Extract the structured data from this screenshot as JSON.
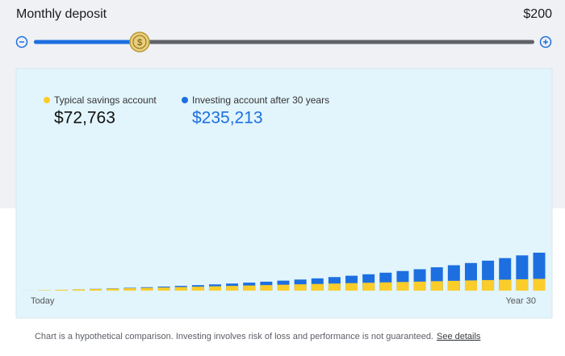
{
  "header": {
    "title": "Monthly deposit",
    "amount": "$200"
  },
  "chart_data": {
    "type": "bar",
    "categories": [
      "Today",
      null,
      null,
      null,
      null,
      null,
      null,
      null,
      null,
      null,
      null,
      null,
      null,
      null,
      null,
      null,
      null,
      null,
      null,
      null,
      null,
      null,
      null,
      null,
      null,
      null,
      null,
      null,
      null,
      null,
      "Year 30"
    ],
    "series": [
      {
        "name": "Investing account after 30 years",
        "color": "#1d6fe0",
        "values": [
          200,
          2600,
          5200,
          8000,
          11000,
          14100,
          17600,
          21200,
          25100,
          29400,
          33900,
          38700,
          43900,
          49500,
          55400,
          61800,
          68700,
          76000,
          83900,
          92300,
          101400,
          111100,
          121500,
          132600,
          144600,
          157400,
          171100,
          185800,
          201600,
          218500,
          235213
        ],
        "value_labels": [
          null,
          null,
          null,
          null,
          null,
          null,
          null,
          null,
          null,
          null,
          null,
          null,
          null,
          null,
          null,
          null,
          null,
          null,
          null,
          null,
          null,
          null,
          null,
          null,
          null,
          null,
          null,
          null,
          null,
          null,
          "$235,213"
        ]
      },
      {
        "name": "Typical savings account",
        "color": "#fbcd2b",
        "values": [
          200,
          2600,
          5000,
          7500,
          9900,
          12300,
          14700,
          17100,
          19600,
          22000,
          24400,
          26800,
          29200,
          31600,
          34100,
          36500,
          38900,
          41300,
          43700,
          46200,
          48600,
          51000,
          53400,
          55800,
          58300,
          60700,
          63100,
          65500,
          67900,
          70400,
          72763
        ],
        "value_labels": [
          null,
          null,
          null,
          null,
          null,
          null,
          null,
          null,
          null,
          null,
          null,
          null,
          null,
          null,
          null,
          null,
          null,
          null,
          null,
          null,
          null,
          null,
          null,
          null,
          null,
          null,
          null,
          null,
          null,
          null,
          "$72,763"
        ]
      }
    ]
  },
  "footer": {
    "note": "Chart is a hypothetical comparison. Investing involves risk of loss and performance is not guaranteed.",
    "link": "See details"
  }
}
